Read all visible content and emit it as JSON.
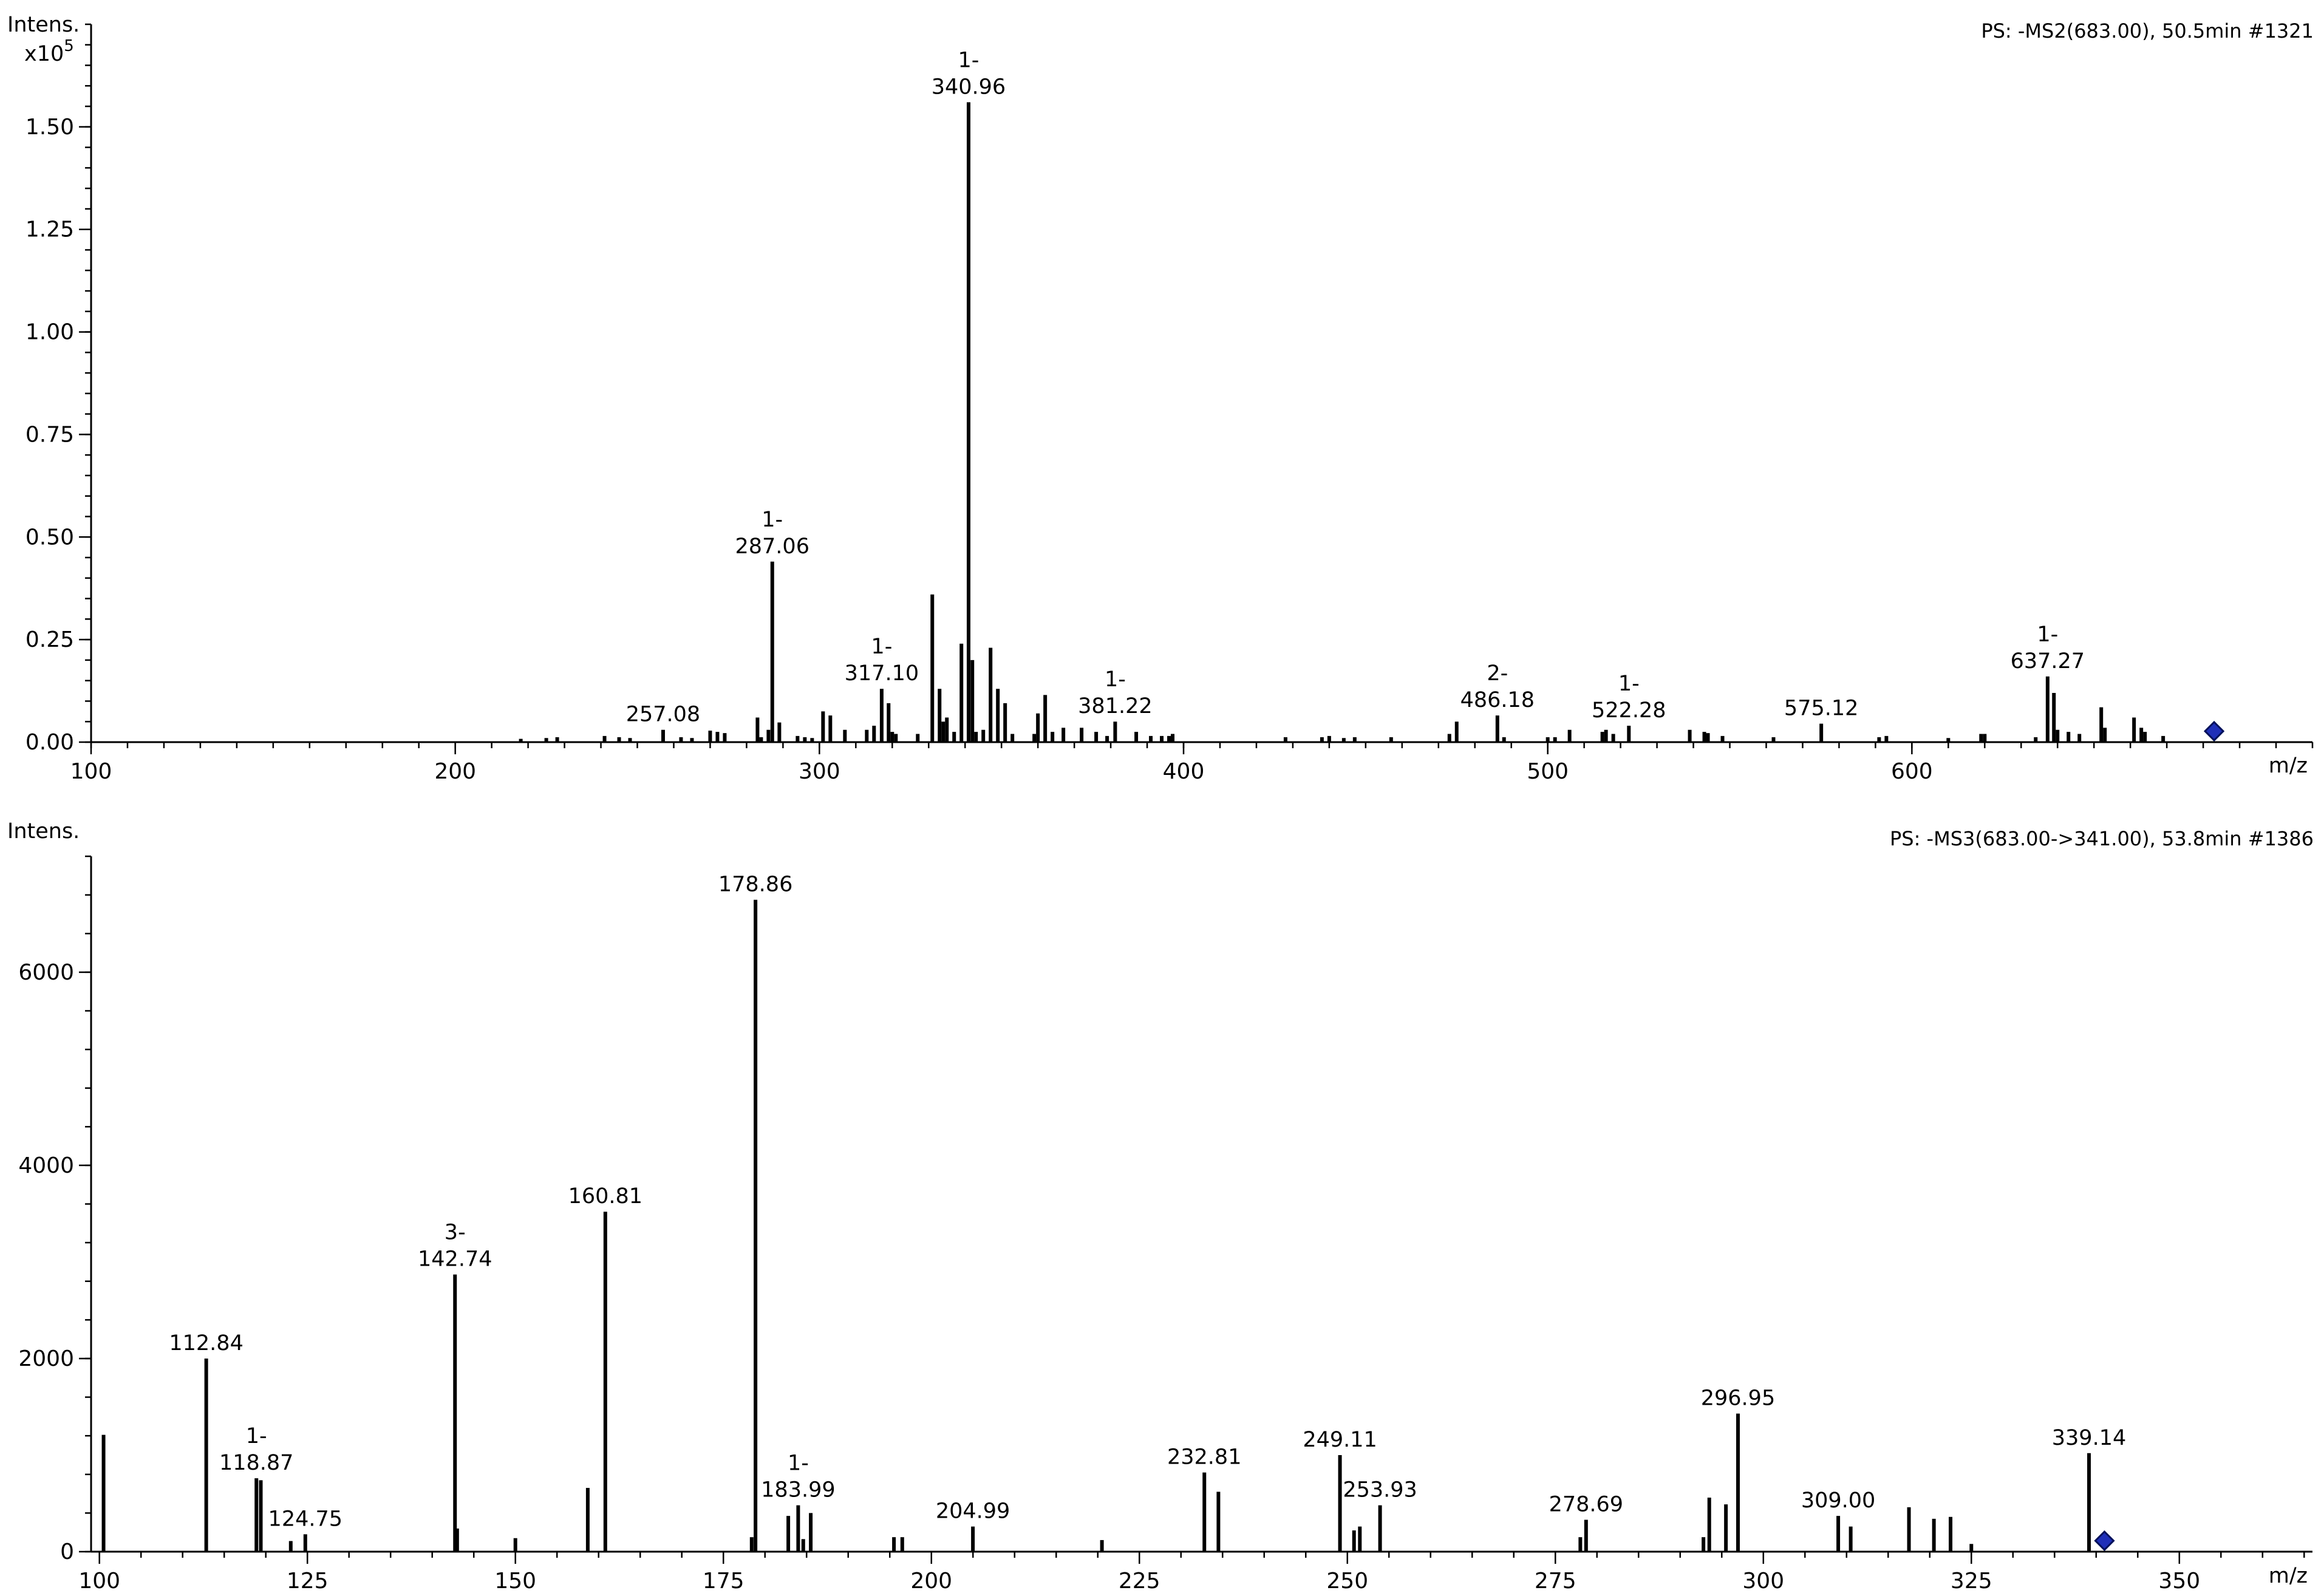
{
  "chart_data": [
    {
      "type": "bar",
      "title": "PS: -MS2(683.00), 50.5min #1321",
      "ylabel": "Intens.",
      "yexponent": "x10",
      "yexponent_power": "5",
      "xlabel": "m/z",
      "xlim": [
        100,
        710
      ],
      "ylim": [
        0,
        1.75
      ],
      "xticks": [
        100,
        200,
        300,
        400,
        500,
        600
      ],
      "yticks": [
        "0.00",
        "0.25",
        "0.50",
        "0.75",
        "1.00",
        "1.25",
        "1.50"
      ],
      "grid": false,
      "precursor_mz": 683.0,
      "labeled_peaks": [
        {
          "mz": 257.08,
          "intensity": 0.03,
          "label": "257.08",
          "charge": ""
        },
        {
          "mz": 287.06,
          "intensity": 0.44,
          "label": "287.06",
          "charge": "1-"
        },
        {
          "mz": 317.1,
          "intensity": 0.13,
          "label": "317.10",
          "charge": "1-"
        },
        {
          "mz": 340.96,
          "intensity": 1.56,
          "label": "340.96",
          "charge": "1-"
        },
        {
          "mz": 381.22,
          "intensity": 0.05,
          "label": "381.22",
          "charge": "1-"
        },
        {
          "mz": 486.18,
          "intensity": 0.065,
          "label": "486.18",
          "charge": "2-"
        },
        {
          "mz": 522.28,
          "intensity": 0.04,
          "label": "522.28",
          "charge": "1-"
        },
        {
          "mz": 575.12,
          "intensity": 0.045,
          "label": "575.12",
          "charge": ""
        },
        {
          "mz": 637.27,
          "intensity": 0.16,
          "label": "637.27",
          "charge": "1-"
        }
      ],
      "peaks": [
        [
          218,
          0.008
        ],
        [
          225,
          0.01
        ],
        [
          228,
          0.012
        ],
        [
          241,
          0.015
        ],
        [
          245,
          0.012
        ],
        [
          248,
          0.01
        ],
        [
          262,
          0.012
        ],
        [
          265,
          0.01
        ],
        [
          270,
          0.028
        ],
        [
          272,
          0.025
        ],
        [
          274,
          0.022
        ],
        [
          283,
          0.06
        ],
        [
          284,
          0.012
        ],
        [
          286,
          0.03
        ],
        [
          289,
          0.048
        ],
        [
          294,
          0.015
        ],
        [
          296,
          0.012
        ],
        [
          298,
          0.01
        ],
        [
          301,
          0.075
        ],
        [
          303,
          0.065
        ],
        [
          307,
          0.03
        ],
        [
          313,
          0.03
        ],
        [
          315,
          0.04
        ],
        [
          319,
          0.095
        ],
        [
          320,
          0.025
        ],
        [
          321,
          0.02
        ],
        [
          327,
          0.02
        ],
        [
          331,
          0.36
        ],
        [
          333,
          0.13
        ],
        [
          334,
          0.05
        ],
        [
          335,
          0.06
        ],
        [
          337,
          0.025
        ],
        [
          339,
          0.24
        ],
        [
          342,
          0.2
        ],
        [
          343,
          0.025
        ],
        [
          345,
          0.03
        ],
        [
          347,
          0.23
        ],
        [
          349,
          0.13
        ],
        [
          351,
          0.095
        ],
        [
          353,
          0.02
        ],
        [
          359,
          0.02
        ],
        [
          360,
          0.07
        ],
        [
          362,
          0.115
        ],
        [
          364,
          0.025
        ],
        [
          367,
          0.035
        ],
        [
          372,
          0.035
        ],
        [
          376,
          0.025
        ],
        [
          379,
          0.015
        ],
        [
          387,
          0.025
        ],
        [
          391,
          0.015
        ],
        [
          394,
          0.015
        ],
        [
          396,
          0.015
        ],
        [
          397,
          0.02
        ],
        [
          428,
          0.012
        ],
        [
          438,
          0.012
        ],
        [
          440,
          0.015
        ],
        [
          444,
          0.01
        ],
        [
          447,
          0.012
        ],
        [
          457,
          0.012
        ],
        [
          473,
          0.02
        ],
        [
          475,
          0.05
        ],
        [
          488,
          0.012
        ],
        [
          500,
          0.012
        ],
        [
          502,
          0.012
        ],
        [
          506,
          0.03
        ],
        [
          515,
          0.025
        ],
        [
          516,
          0.03
        ],
        [
          518,
          0.02
        ],
        [
          539,
          0.03
        ],
        [
          543,
          0.025
        ],
        [
          544,
          0.022
        ],
        [
          548,
          0.015
        ],
        [
          562,
          0.012
        ],
        [
          591,
          0.012
        ],
        [
          593,
          0.015
        ],
        [
          610,
          0.01
        ],
        [
          619,
          0.02
        ],
        [
          620,
          0.02
        ],
        [
          634,
          0.012
        ],
        [
          639,
          0.12
        ],
        [
          640,
          0.03
        ],
        [
          643,
          0.025
        ],
        [
          646,
          0.02
        ],
        [
          652,
          0.085
        ],
        [
          653,
          0.035
        ],
        [
          661,
          0.06
        ],
        [
          663,
          0.035
        ],
        [
          664,
          0.025
        ],
        [
          669,
          0.015
        ]
      ]
    },
    {
      "type": "bar",
      "title": "PS: -MS3(683.00->341.00), 53.8min #1386",
      "ylabel": "Intens.",
      "xlabel": "m/z",
      "xlim": [
        99,
        366
      ],
      "ylim": [
        0,
        7200
      ],
      "xticks": [
        100,
        125,
        150,
        175,
        200,
        225,
        250,
        275,
        300,
        325,
        350
      ],
      "yticks": [
        "0",
        "2000",
        "4000",
        "6000"
      ],
      "grid": false,
      "precursor_mz": 341.0,
      "labeled_peaks": [
        {
          "mz": 112.84,
          "intensity": 2000,
          "label": "112.84",
          "charge": ""
        },
        {
          "mz": 118.87,
          "intensity": 760,
          "label": "118.87",
          "charge": "1-"
        },
        {
          "mz": 124.75,
          "intensity": 180,
          "label": "124.75",
          "charge": ""
        },
        {
          "mz": 142.74,
          "intensity": 2870,
          "label": "142.74",
          "charge": "3-"
        },
        {
          "mz": 160.81,
          "intensity": 3520,
          "label": "160.81",
          "charge": ""
        },
        {
          "mz": 178.86,
          "intensity": 6750,
          "label": "178.86",
          "charge": ""
        },
        {
          "mz": 183.99,
          "intensity": 480,
          "label": "183.99",
          "charge": "1-"
        },
        {
          "mz": 204.99,
          "intensity": 260,
          "label": "204.99",
          "charge": ""
        },
        {
          "mz": 232.81,
          "intensity": 820,
          "label": "232.81",
          "charge": ""
        },
        {
          "mz": 249.11,
          "intensity": 1000,
          "label": "249.11",
          "charge": ""
        },
        {
          "mz": 253.93,
          "intensity": 480,
          "label": "253.93",
          "charge": ""
        },
        {
          "mz": 278.69,
          "intensity": 330,
          "label": "278.69",
          "charge": ""
        },
        {
          "mz": 296.95,
          "intensity": 1430,
          "label": "296.95",
          "charge": ""
        },
        {
          "mz": 309.0,
          "intensity": 370,
          "label": "309.00",
          "charge": ""
        },
        {
          "mz": 339.14,
          "intensity": 1020,
          "label": "339.14",
          "charge": ""
        }
      ],
      "peaks": [
        [
          100.5,
          1210
        ],
        [
          119.4,
          740
        ],
        [
          123,
          110
        ],
        [
          143,
          240
        ],
        [
          150,
          140
        ],
        [
          158.7,
          660
        ],
        [
          178.4,
          150
        ],
        [
          182.8,
          370
        ],
        [
          184.6,
          130
        ],
        [
          185.5,
          400
        ],
        [
          195.5,
          150
        ],
        [
          196.5,
          150
        ],
        [
          220.5,
          120
        ],
        [
          234.5,
          620
        ],
        [
          250.8,
          220
        ],
        [
          251.5,
          260
        ],
        [
          278,
          150
        ],
        [
          292.8,
          150
        ],
        [
          293.5,
          560
        ],
        [
          295.5,
          490
        ],
        [
          310.5,
          260
        ],
        [
          317.5,
          460
        ],
        [
          320.5,
          340
        ],
        [
          322.5,
          360
        ],
        [
          325,
          80
        ]
      ]
    }
  ]
}
